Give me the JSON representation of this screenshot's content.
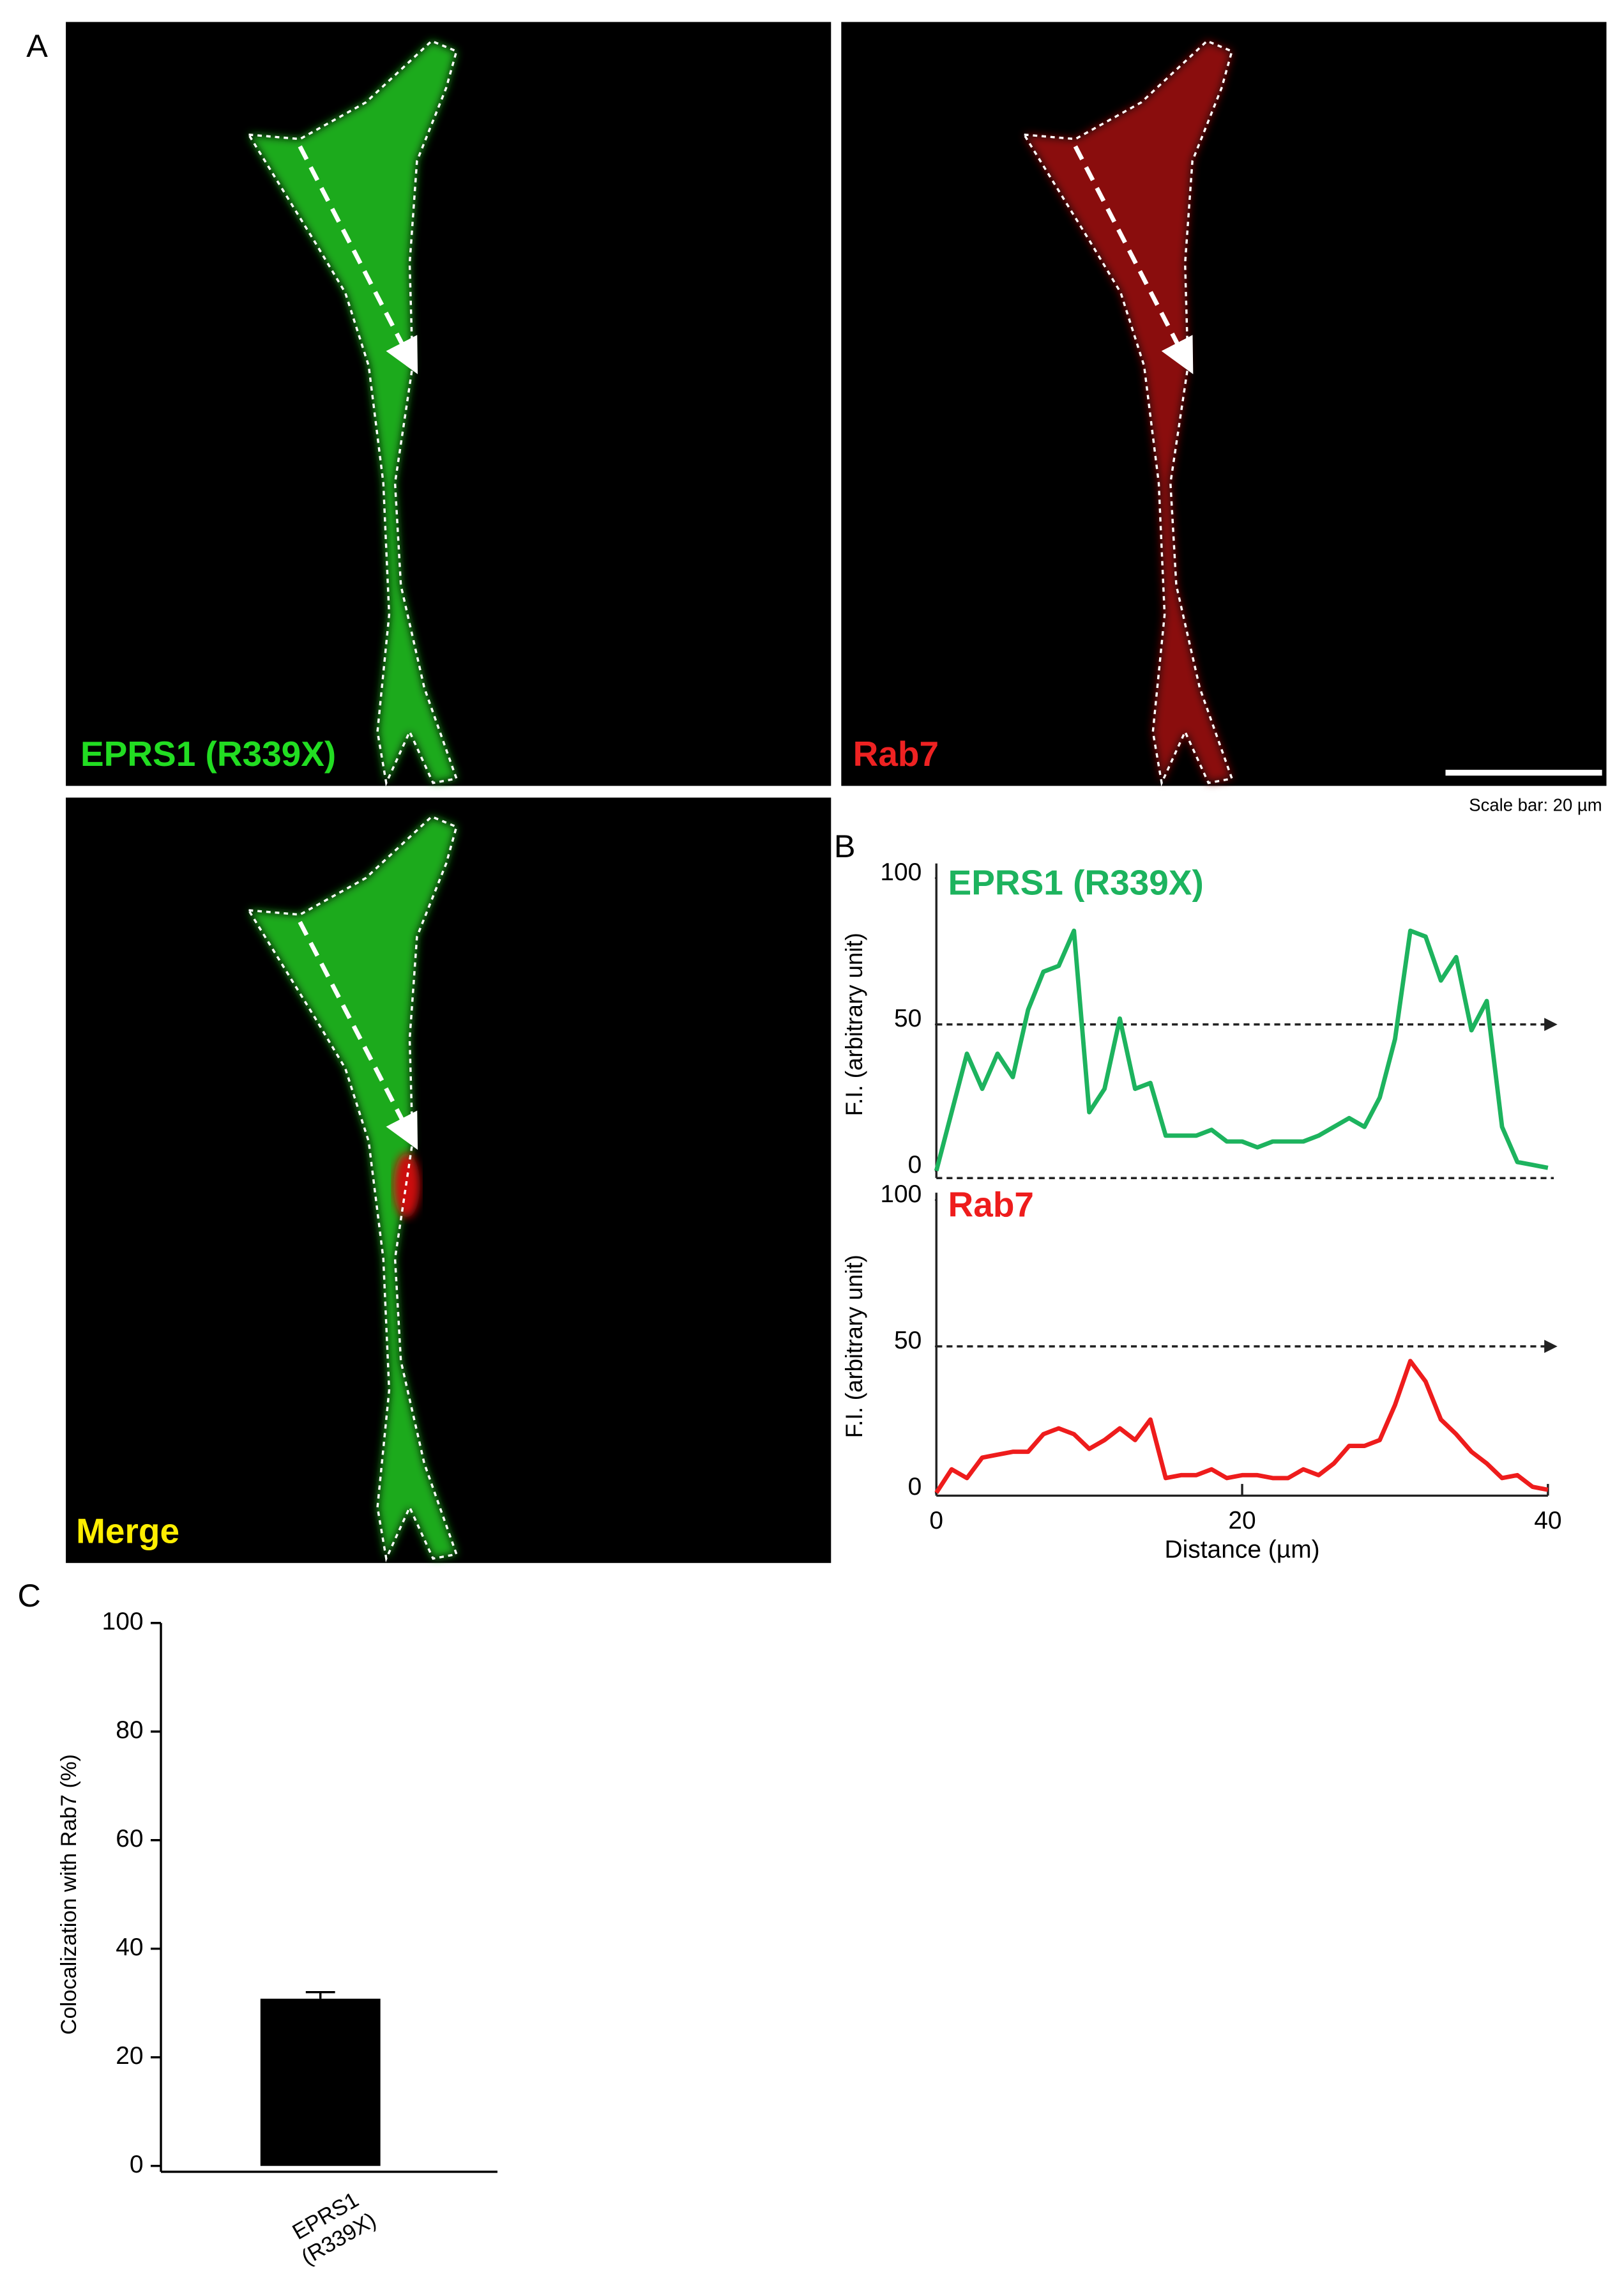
{
  "figure": {
    "panel_labels": [
      "A",
      "B",
      "C"
    ],
    "images": [
      {
        "label": "EPRS1 (R339X)",
        "color": "#22dd22"
      },
      {
        "label": "Rab7",
        "color": "#ee2222"
      },
      {
        "label": "Merge",
        "color": "#ffee00"
      }
    ],
    "scale_bar": "Scale bar: 20 µm"
  },
  "chart_data": [
    {
      "type": "line",
      "ylabel": "F.I. (arbitrary unit)",
      "xlim": [
        0,
        40
      ],
      "ylim": [
        0,
        100
      ],
      "yticks": [
        0,
        50,
        100
      ],
      "reference_line": 50,
      "x": [
        0,
        1,
        2,
        3,
        4,
        5,
        6,
        7,
        8,
        9,
        10,
        11,
        12,
        13,
        14,
        15,
        16,
        17,
        18,
        19,
        20,
        21,
        22,
        23,
        24,
        25,
        26,
        27,
        28,
        29,
        30,
        31,
        32,
        33,
        34,
        35,
        36,
        37,
        38,
        39,
        40
      ],
      "series": [
        {
          "name": "EPRS1 (R339X)",
          "color": "#1db35e",
          "values": [
            0,
            20,
            40,
            28,
            40,
            32,
            55,
            68,
            70,
            82,
            20,
            28,
            52,
            28,
            30,
            12,
            12,
            12,
            14,
            10,
            10,
            8,
            10,
            10,
            10,
            12,
            15,
            18,
            15,
            25,
            45,
            82,
            80,
            65,
            73,
            48,
            58,
            15,
            3,
            2,
            1
          ]
        }
      ]
    },
    {
      "type": "line",
      "ylabel": "F.I. (arbitrary unit)",
      "xlabel": "Distance (µm)",
      "xlim": [
        0,
        40
      ],
      "ylim": [
        0,
        100
      ],
      "yticks": [
        0,
        50,
        100
      ],
      "xticks": [
        0,
        20,
        40
      ],
      "reference_line": 50,
      "x": [
        0,
        1,
        2,
        3,
        4,
        5,
        6,
        7,
        8,
        9,
        10,
        11,
        12,
        13,
        14,
        15,
        16,
        17,
        18,
        19,
        20,
        21,
        22,
        23,
        24,
        25,
        26,
        27,
        28,
        29,
        30,
        31,
        32,
        33,
        34,
        35,
        36,
        37,
        38,
        39,
        40
      ],
      "series": [
        {
          "name": "Rab7",
          "color": "#ee1c1c",
          "values": [
            0,
            8,
            5,
            12,
            13,
            14,
            14,
            20,
            22,
            20,
            15,
            18,
            22,
            18,
            25,
            5,
            6,
            6,
            8,
            5,
            6,
            6,
            5,
            5,
            8,
            6,
            10,
            16,
            16,
            18,
            30,
            45,
            38,
            25,
            20,
            14,
            10,
            5,
            6,
            2,
            1
          ]
        }
      ]
    },
    {
      "type": "bar",
      "ylabel": "Colocalization with Rab7 (%)",
      "categories": [
        "EPRS1 (R339X)"
      ],
      "values": [
        30.8
      ],
      "errors": [
        1.2
      ],
      "color": "#000000",
      "ylim": [
        0,
        100
      ],
      "yticks": [
        0,
        20,
        40,
        60,
        80,
        100
      ]
    }
  ]
}
